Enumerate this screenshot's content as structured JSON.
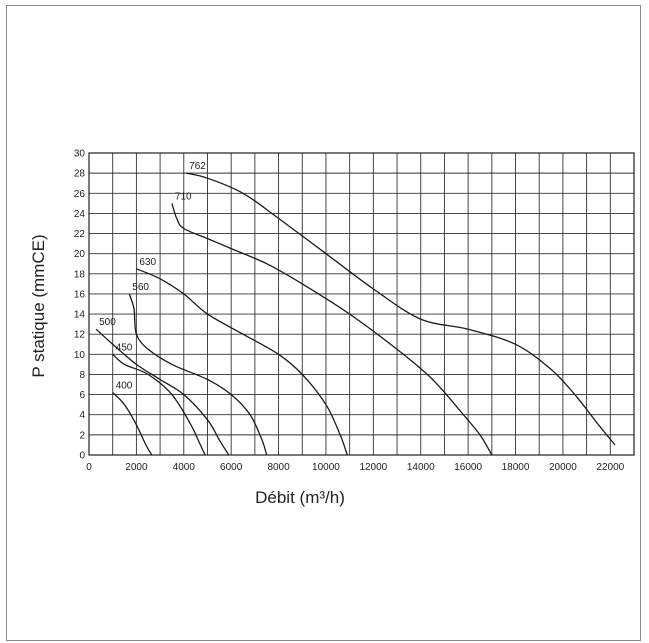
{
  "chart_data": {
    "type": "line",
    "xlabel": "Débit (m³/h)",
    "ylabel": "P statique (mmCE)",
    "xlim": [
      0,
      23000
    ],
    "ylim": [
      0,
      30
    ],
    "x_ticks": [
      0,
      2000,
      4000,
      6000,
      8000,
      10000,
      12000,
      14000,
      16000,
      18000,
      20000,
      22000
    ],
    "y_ticks": [
      0,
      2,
      4,
      6,
      8,
      10,
      12,
      14,
      16,
      18,
      20,
      22,
      24,
      26,
      28,
      30
    ],
    "grid": true,
    "series": [
      {
        "name": "400",
        "points": [
          [
            1000,
            6.2
          ],
          [
            1500,
            5.0
          ],
          [
            2000,
            3.0
          ],
          [
            2400,
            1.0
          ],
          [
            2650,
            0
          ]
        ]
      },
      {
        "name": "450",
        "points": [
          [
            1000,
            10.0
          ],
          [
            1500,
            9.0
          ],
          [
            2500,
            8.0
          ],
          [
            3500,
            6.0
          ],
          [
            4300,
            3.0
          ],
          [
            4700,
            1.0
          ],
          [
            4900,
            0
          ]
        ]
      },
      {
        "name": "500",
        "points": [
          [
            300,
            12.5
          ],
          [
            1000,
            11.0
          ],
          [
            2000,
            9.0
          ],
          [
            3000,
            7.5
          ],
          [
            4000,
            6.0
          ],
          [
            5000,
            3.5
          ],
          [
            5500,
            1.5
          ],
          [
            5900,
            0
          ]
        ]
      },
      {
        "name": "560",
        "points": [
          [
            1700,
            16.0
          ],
          [
            1900,
            14.5
          ],
          [
            2000,
            12.0
          ],
          [
            2500,
            10.5
          ],
          [
            3500,
            9.0
          ],
          [
            5000,
            7.5
          ],
          [
            6000,
            6.0
          ],
          [
            6800,
            4.0
          ],
          [
            7300,
            1.5
          ],
          [
            7500,
            0
          ]
        ]
      },
      {
        "name": "630",
        "points": [
          [
            2000,
            18.5
          ],
          [
            3000,
            17.5
          ],
          [
            4000,
            16.0
          ],
          [
            5000,
            14.0
          ],
          [
            6500,
            12.0
          ],
          [
            8000,
            10.0
          ],
          [
            9000,
            8.0
          ],
          [
            10000,
            5.0
          ],
          [
            10600,
            2.0
          ],
          [
            10900,
            0
          ]
        ]
      },
      {
        "name": "710",
        "points": [
          [
            3500,
            25.0
          ],
          [
            3700,
            23.5
          ],
          [
            4000,
            22.5
          ],
          [
            5000,
            21.5
          ],
          [
            6000,
            20.5
          ],
          [
            7500,
            19.0
          ],
          [
            9000,
            17.0
          ],
          [
            11000,
            14.0
          ],
          [
            13000,
            10.5
          ],
          [
            14500,
            7.5
          ],
          [
            15800,
            4.0
          ],
          [
            16500,
            2.0
          ],
          [
            17000,
            0
          ]
        ]
      },
      {
        "name": "762",
        "points": [
          [
            4100,
            28.0
          ],
          [
            5000,
            27.5
          ],
          [
            6500,
            26.0
          ],
          [
            8000,
            23.5
          ],
          [
            10000,
            20.0
          ],
          [
            12000,
            16.5
          ],
          [
            14000,
            13.5
          ],
          [
            16000,
            12.5
          ],
          [
            18000,
            11.0
          ],
          [
            19500,
            8.5
          ],
          [
            20500,
            6.0
          ],
          [
            21500,
            3.0
          ],
          [
            22200,
            1.0
          ]
        ]
      }
    ]
  }
}
